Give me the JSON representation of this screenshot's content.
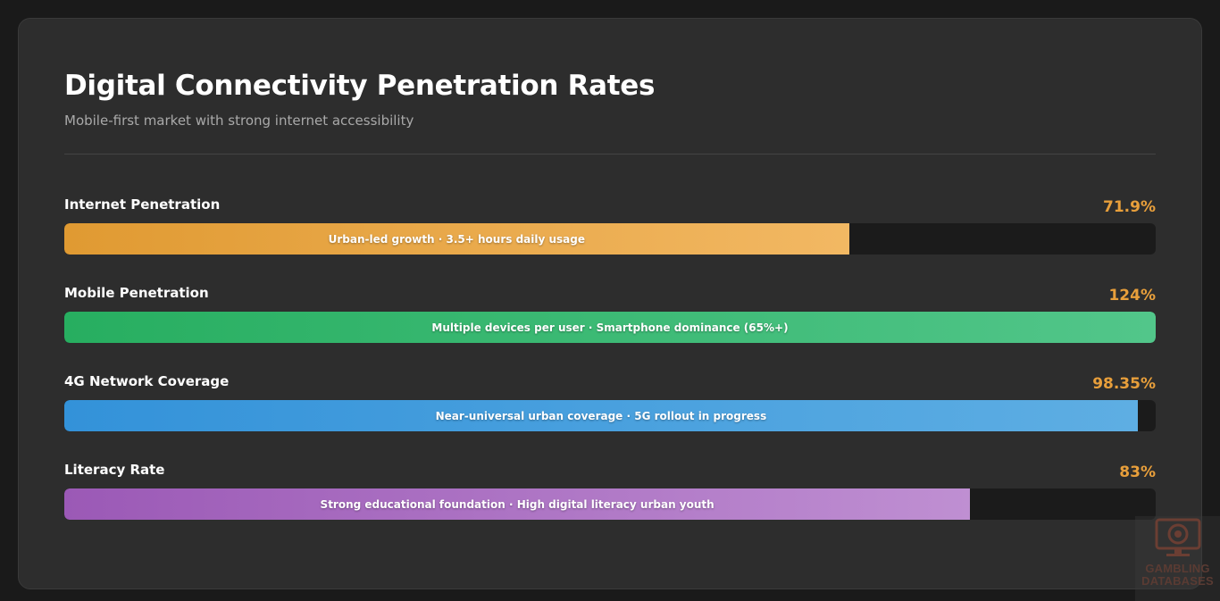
{
  "title": "Digital Connectivity Penetration Rates",
  "subtitle": "Mobile-first market with strong internet accessibility",
  "value_color": "#e89f3b",
  "chart_data": {
    "type": "bar",
    "orientation": "horizontal",
    "title": "Digital Connectivity Penetration Rates",
    "subtitle": "Mobile-first market with strong internet accessibility",
    "categories": [
      "Internet Penetration",
      "Mobile Penetration",
      "4G Network Coverage",
      "Literacy Rate"
    ],
    "values": [
      71.9,
      124,
      98.35,
      83
    ],
    "value_labels": [
      "71.9%",
      "124%",
      "98.35%",
      "83%"
    ],
    "fill_percent": [
      71.9,
      100,
      98.35,
      83
    ],
    "annotations": [
      "Urban-led growth · 3.5+ hours daily usage",
      "Multiple devices per user · Smartphone dominance (65%+)",
      "Near-universal urban coverage · 5G rollout in progress",
      "Strong educational foundation · High digital literacy urban youth"
    ],
    "colors": [
      [
        "#e09a32",
        "#f2b863"
      ],
      [
        "#27ae60",
        "#52c68a"
      ],
      [
        "#3392d9",
        "#5eaee3"
      ],
      [
        "#9b59b6",
        "#bf8fd2"
      ]
    ],
    "xlim": [
      0,
      100
    ],
    "unit": "%"
  },
  "watermark": {
    "line1": "GAMBLING",
    "line2": "DATABASES",
    "icon": "monitor-chip-icon"
  }
}
